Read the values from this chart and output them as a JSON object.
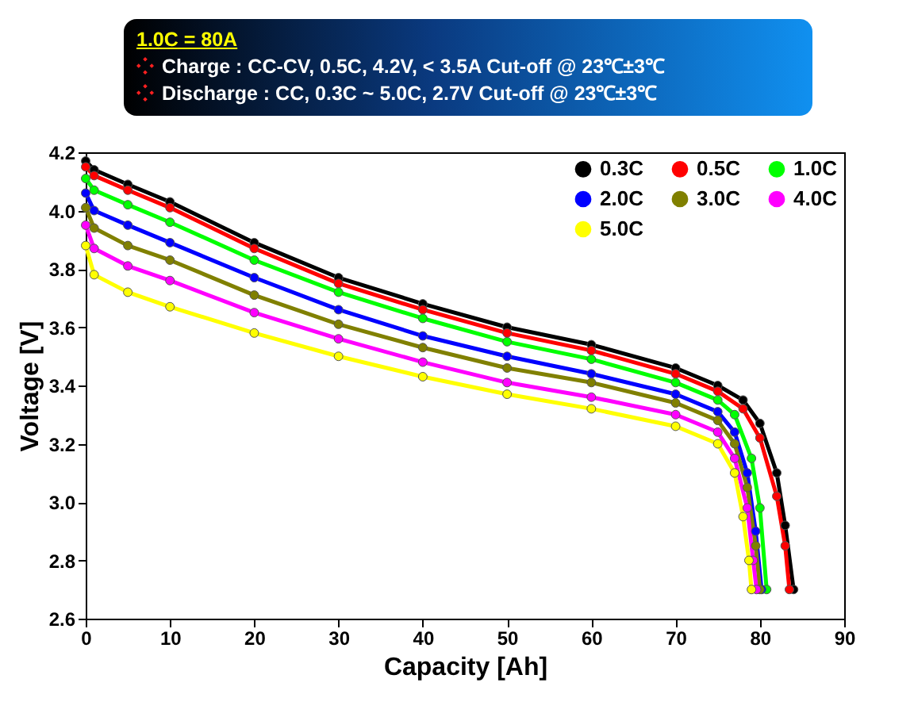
{
  "chart_data": {
    "type": "line",
    "title": "1.0C = 80A",
    "annotations": [
      "Charge : CC-CV, 0.5C,  4.2V,  < 3.5A Cut-off @ 23℃±3℃",
      "Discharge :  CC, 0.3C ~ 5.0C, 2.7V Cut-off @ 23℃±3℃"
    ],
    "xlabel": "Capacity [Ah]",
    "ylabel": "Voltage [V]",
    "series": [
      {
        "name": "0.3C",
        "color": "#000000",
        "x": [
          0,
          1,
          5,
          10,
          20,
          30,
          40,
          50,
          60,
          70,
          75,
          78,
          80,
          82,
          83,
          84
        ],
        "values": [
          4.17,
          4.14,
          4.09,
          4.03,
          3.89,
          3.77,
          3.68,
          3.6,
          3.54,
          3.46,
          3.4,
          3.35,
          3.27,
          3.1,
          2.92,
          2.7
        ]
      },
      {
        "name": "0.5C",
        "color": "#ff0000",
        "x": [
          0,
          1,
          5,
          10,
          20,
          30,
          40,
          50,
          60,
          70,
          75,
          78,
          80,
          82,
          83,
          83.5
        ],
        "values": [
          4.15,
          4.12,
          4.07,
          4.01,
          3.87,
          3.75,
          3.66,
          3.58,
          3.52,
          3.44,
          3.38,
          3.32,
          3.22,
          3.02,
          2.85,
          2.7
        ]
      },
      {
        "name": "1.0C",
        "color": "#00ff00",
        "x": [
          0,
          1,
          5,
          10,
          20,
          30,
          40,
          50,
          60,
          70,
          75,
          77,
          79,
          80,
          80.8
        ],
        "values": [
          4.11,
          4.07,
          4.02,
          3.96,
          3.83,
          3.72,
          3.63,
          3.55,
          3.49,
          3.41,
          3.35,
          3.3,
          3.15,
          2.98,
          2.7
        ]
      },
      {
        "name": "2.0C",
        "color": "#0000ff",
        "x": [
          0,
          1,
          5,
          10,
          20,
          30,
          40,
          50,
          60,
          70,
          75,
          77,
          78.5,
          79.5,
          80.2
        ],
        "values": [
          4.06,
          4.0,
          3.95,
          3.89,
          3.77,
          3.66,
          3.57,
          3.5,
          3.44,
          3.37,
          3.31,
          3.24,
          3.1,
          2.9,
          2.7
        ]
      },
      {
        "name": "3.0C",
        "color": "#808000",
        "x": [
          0,
          1,
          5,
          10,
          20,
          30,
          40,
          50,
          60,
          70,
          75,
          77,
          78.5,
          79.5,
          80
        ],
        "values": [
          4.01,
          3.94,
          3.88,
          3.83,
          3.71,
          3.61,
          3.53,
          3.46,
          3.41,
          3.34,
          3.28,
          3.2,
          3.05,
          2.85,
          2.7
        ]
      },
      {
        "name": "4.0C",
        "color": "#ff00ff",
        "x": [
          0,
          1,
          5,
          10,
          20,
          30,
          40,
          50,
          60,
          70,
          75,
          77,
          78.5,
          79.2,
          79.6
        ],
        "values": [
          3.95,
          3.87,
          3.81,
          3.76,
          3.65,
          3.56,
          3.48,
          3.41,
          3.36,
          3.3,
          3.24,
          3.15,
          2.98,
          2.8,
          2.7
        ]
      },
      {
        "name": "5.0C",
        "color": "#ffff00",
        "x": [
          0,
          1,
          5,
          10,
          20,
          30,
          40,
          50,
          60,
          70,
          75,
          77,
          78,
          78.7,
          79
        ],
        "values": [
          3.88,
          3.78,
          3.72,
          3.67,
          3.58,
          3.5,
          3.43,
          3.37,
          3.32,
          3.26,
          3.2,
          3.1,
          2.95,
          2.8,
          2.7
        ]
      }
    ],
    "xlim": [
      0,
      90
    ],
    "xticks": [
      0,
      10,
      20,
      30,
      40,
      50,
      60,
      70,
      80,
      90
    ],
    "ylim": [
      2.6,
      4.2
    ],
    "yticks": [
      2.6,
      2.8,
      {
        "value": 3,
        "label": "3.0"
      },
      3.2,
      3.4,
      3.6,
      3.8,
      {
        "value": 4,
        "label": "4.0"
      },
      4.2
    ],
    "grid": false,
    "legend": "top right",
    "marker": "circle",
    "line_style": "solid"
  }
}
